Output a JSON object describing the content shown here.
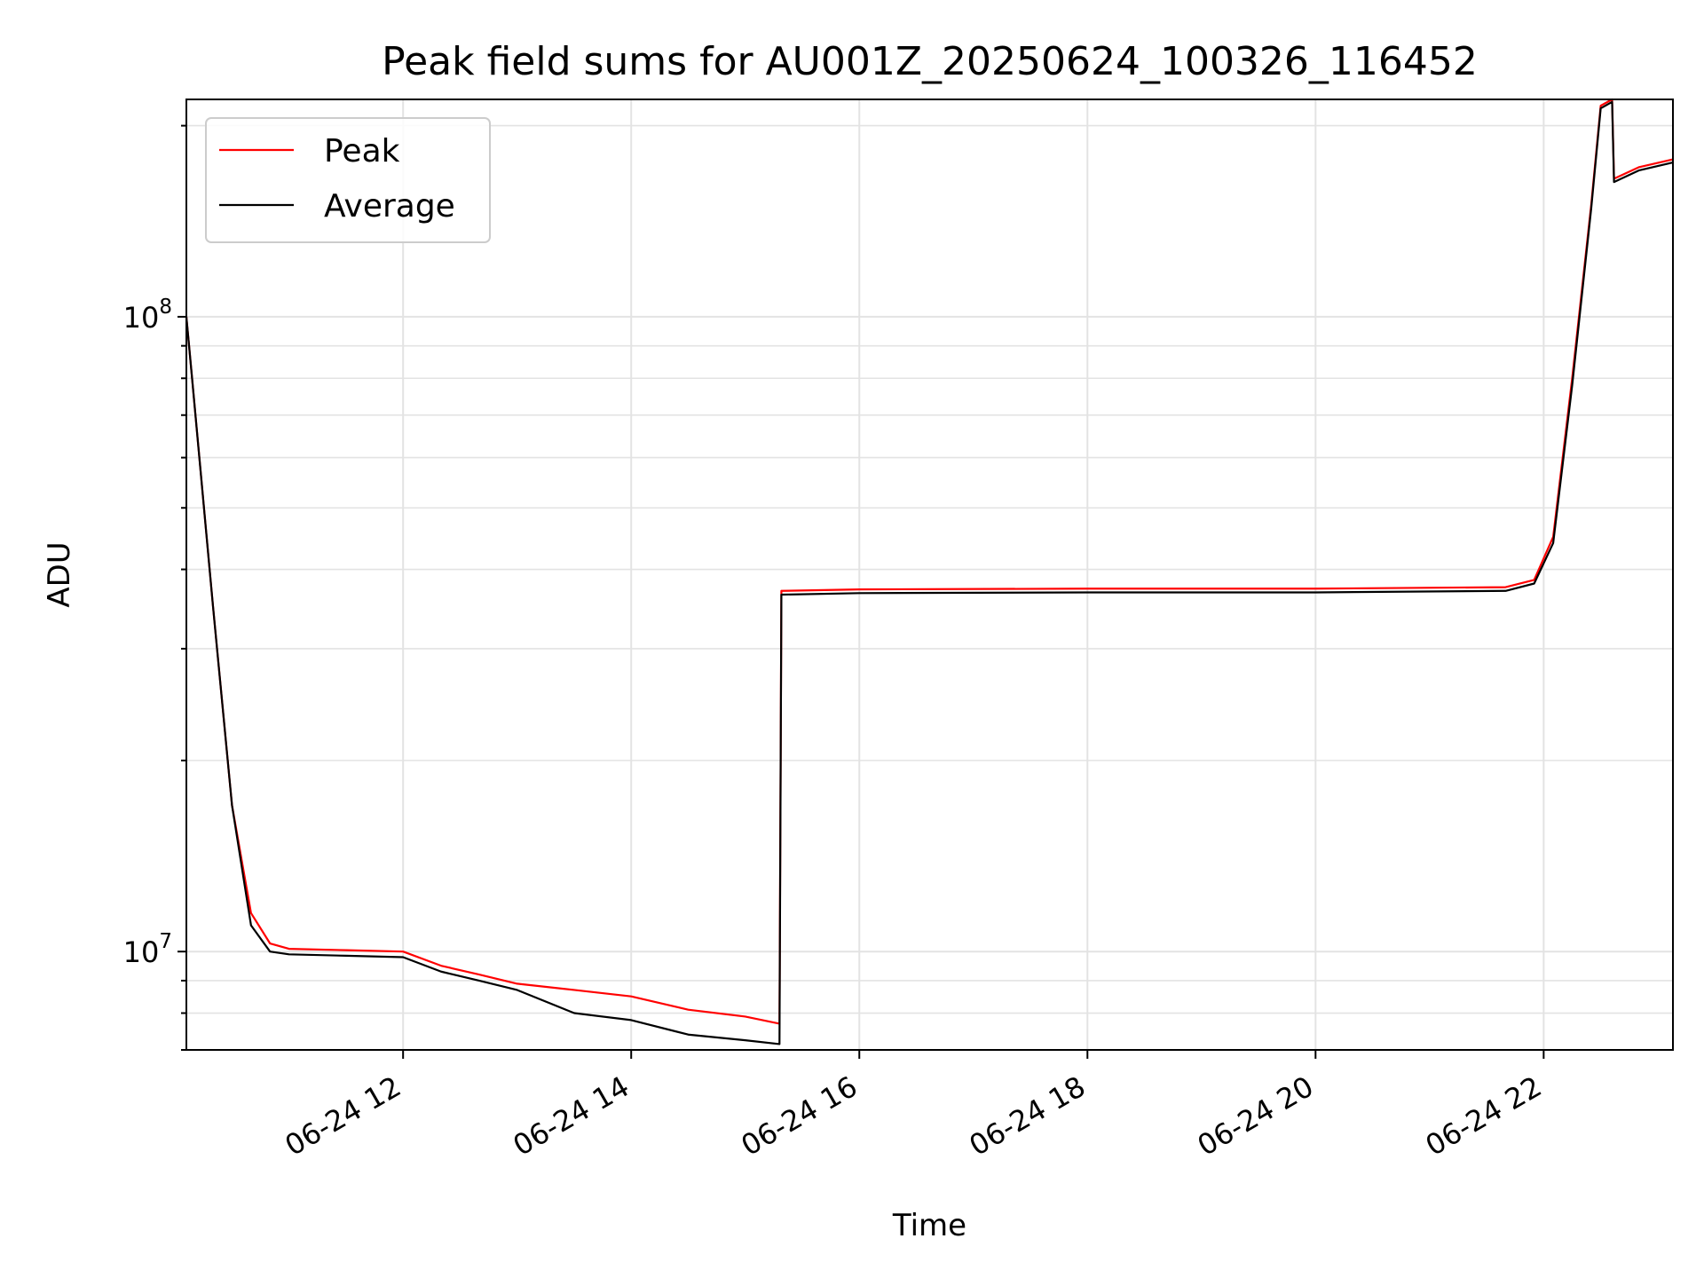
{
  "chart_data": {
    "type": "line",
    "title": "Peak field sums for AU001Z_20250624_100326_116452",
    "xlabel": "Time",
    "ylabel": "ADU",
    "yscale": "log",
    "ylim": [
      7000000,
      220000000
    ],
    "xlim": [
      "2025-06-24T10:06",
      "2025-06-24T23:08"
    ],
    "x_tick_values": [
      "2025-06-24T12:00",
      "2025-06-24T14:00",
      "2025-06-24T16:00",
      "2025-06-24T18:00",
      "2025-06-24T20:00",
      "2025-06-24T22:00"
    ],
    "x_tick_labels": [
      "06-24 12",
      "06-24 14",
      "06-24 16",
      "06-24 18",
      "06-24 20",
      "06-24 22"
    ],
    "y_major_tick_values": [
      10000000,
      100000000
    ],
    "y_major_tick_labels": [
      {
        "base": "10",
        "exp": "7"
      },
      {
        "base": "10",
        "exp": "8"
      }
    ],
    "grid": true,
    "legend_position": "upper-left",
    "series": [
      {
        "name": "Peak",
        "color": "#ff0000",
        "points": [
          [
            "2025-06-24T10:06",
            100000000
          ],
          [
            "2025-06-24T10:09",
            80000000
          ],
          [
            "2025-06-24T10:20",
            35000000
          ],
          [
            "2025-06-24T10:30",
            17000000
          ],
          [
            "2025-06-24T10:40",
            11500000
          ],
          [
            "2025-06-24T10:50",
            10300000
          ],
          [
            "2025-06-24T11:00",
            10100000
          ],
          [
            "2025-06-24T11:30",
            10050000
          ],
          [
            "2025-06-24T12:00",
            10000000
          ],
          [
            "2025-06-24T12:20",
            9500000
          ],
          [
            "2025-06-24T12:40",
            9200000
          ],
          [
            "2025-06-24T13:00",
            8900000
          ],
          [
            "2025-06-24T13:30",
            8700000
          ],
          [
            "2025-06-24T14:00",
            8500000
          ],
          [
            "2025-06-24T14:30",
            8100000
          ],
          [
            "2025-06-24T15:00",
            7900000
          ],
          [
            "2025-06-24T15:18",
            7700000
          ],
          [
            "2025-06-24T15:19",
            37000000
          ],
          [
            "2025-06-24T16:00",
            37200000
          ],
          [
            "2025-06-24T18:00",
            37300000
          ],
          [
            "2025-06-24T20:00",
            37300000
          ],
          [
            "2025-06-24T21:40",
            37500000
          ],
          [
            "2025-06-24T21:55",
            38500000
          ],
          [
            "2025-06-24T22:05",
            45000000
          ],
          [
            "2025-06-24T22:15",
            80000000
          ],
          [
            "2025-06-24T22:25",
            150000000
          ],
          [
            "2025-06-24T22:30",
            215000000
          ],
          [
            "2025-06-24T22:36",
            220000000
          ],
          [
            "2025-06-24T22:37",
            165000000
          ],
          [
            "2025-06-24T22:50",
            172000000
          ],
          [
            "2025-06-24T23:08",
            177000000
          ]
        ]
      },
      {
        "name": "Average",
        "color": "#000000",
        "points": [
          [
            "2025-06-24T10:06",
            100000000
          ],
          [
            "2025-06-24T10:09",
            80000000
          ],
          [
            "2025-06-24T10:20",
            35000000
          ],
          [
            "2025-06-24T10:30",
            17000000
          ],
          [
            "2025-06-24T10:40",
            11000000
          ],
          [
            "2025-06-24T10:50",
            10000000
          ],
          [
            "2025-06-24T11:00",
            9900000
          ],
          [
            "2025-06-24T11:30",
            9850000
          ],
          [
            "2025-06-24T12:00",
            9800000
          ],
          [
            "2025-06-24T12:20",
            9300000
          ],
          [
            "2025-06-24T12:40",
            9000000
          ],
          [
            "2025-06-24T13:00",
            8700000
          ],
          [
            "2025-06-24T13:30",
            8000000
          ],
          [
            "2025-06-24T14:00",
            7800000
          ],
          [
            "2025-06-24T14:30",
            7400000
          ],
          [
            "2025-06-24T15:00",
            7250000
          ],
          [
            "2025-06-24T15:18",
            7150000
          ],
          [
            "2025-06-24T15:19",
            36500000
          ],
          [
            "2025-06-24T16:00",
            36700000
          ],
          [
            "2025-06-24T18:00",
            36800000
          ],
          [
            "2025-06-24T20:00",
            36800000
          ],
          [
            "2025-06-24T21:40",
            37000000
          ],
          [
            "2025-06-24T21:55",
            38000000
          ],
          [
            "2025-06-24T22:05",
            44000000
          ],
          [
            "2025-06-24T22:15",
            78000000
          ],
          [
            "2025-06-24T22:25",
            148000000
          ],
          [
            "2025-06-24T22:30",
            213000000
          ],
          [
            "2025-06-24T22:36",
            218000000
          ],
          [
            "2025-06-24T22:37",
            163000000
          ],
          [
            "2025-06-24T22:50",
            170000000
          ],
          [
            "2025-06-24T23:08",
            175000000
          ]
        ]
      }
    ]
  }
}
